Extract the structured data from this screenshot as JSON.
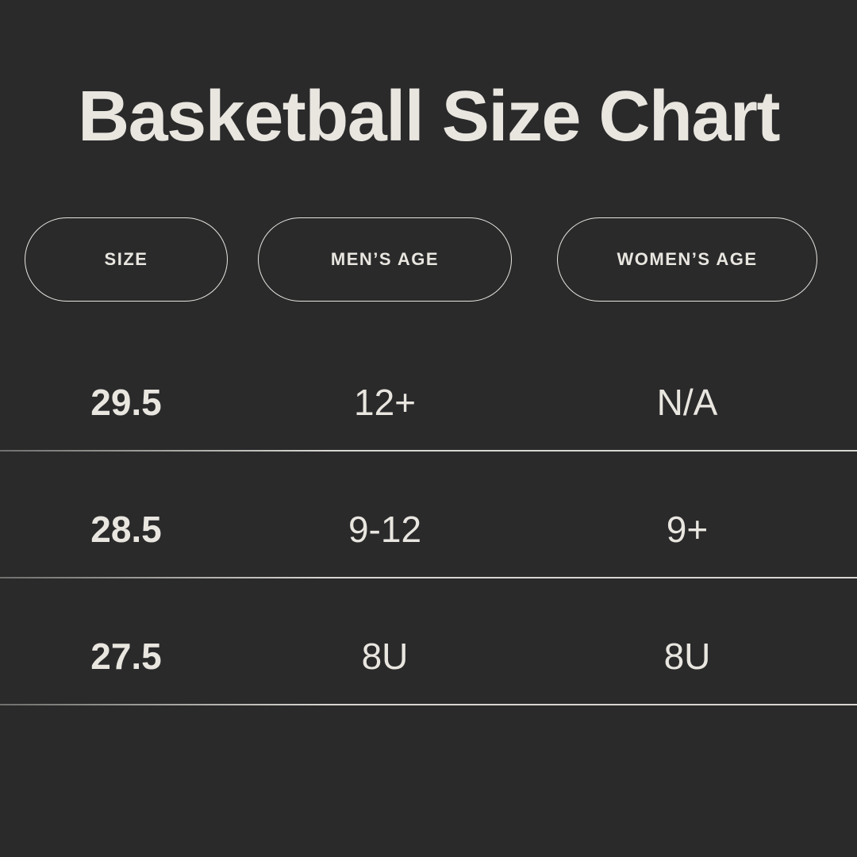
{
  "title": "Basketball Size Chart",
  "colors": {
    "background": "#2a2a2b",
    "text": "#e9e6e0",
    "pill_border": "#e8e5df",
    "divider": "#c9c7c2"
  },
  "chart_data": {
    "type": "table",
    "title": "Basketball Size Chart",
    "columns": [
      "SIZE",
      "MEN’S AGE",
      "WOMEN’S AGE"
    ],
    "rows": [
      [
        "29.5",
        "12+",
        "N/A"
      ],
      [
        "28.5",
        "9-12",
        "9+"
      ],
      [
        "27.5",
        "8U",
        "8U"
      ]
    ],
    "layout": {
      "header_style": "outlined-pills",
      "row_dividers": true,
      "theme": "dark"
    }
  }
}
